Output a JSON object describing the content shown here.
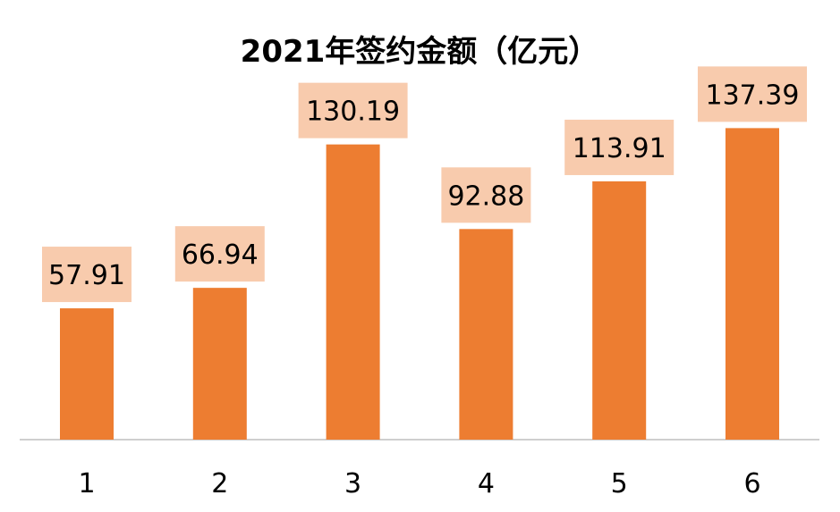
{
  "chart_data": {
    "type": "bar",
    "title": "2021年签约金额（亿元）",
    "xlabel": "",
    "ylabel": "",
    "categories": [
      "1",
      "2",
      "3",
      "4",
      "5",
      "6"
    ],
    "values": [
      57.91,
      66.94,
      130.19,
      92.88,
      113.91,
      137.39
    ],
    "data_labels": [
      "57.91",
      "66.94",
      "130.19",
      "92.88",
      "113.91",
      "137.39"
    ],
    "ylim": [
      0,
      160
    ],
    "grid": false,
    "legend": "none",
    "colors": {
      "bar": "#ED7D31",
      "label_box": "#F8CBAD",
      "axis": "#BFBFBF",
      "text": "#000000"
    }
  }
}
